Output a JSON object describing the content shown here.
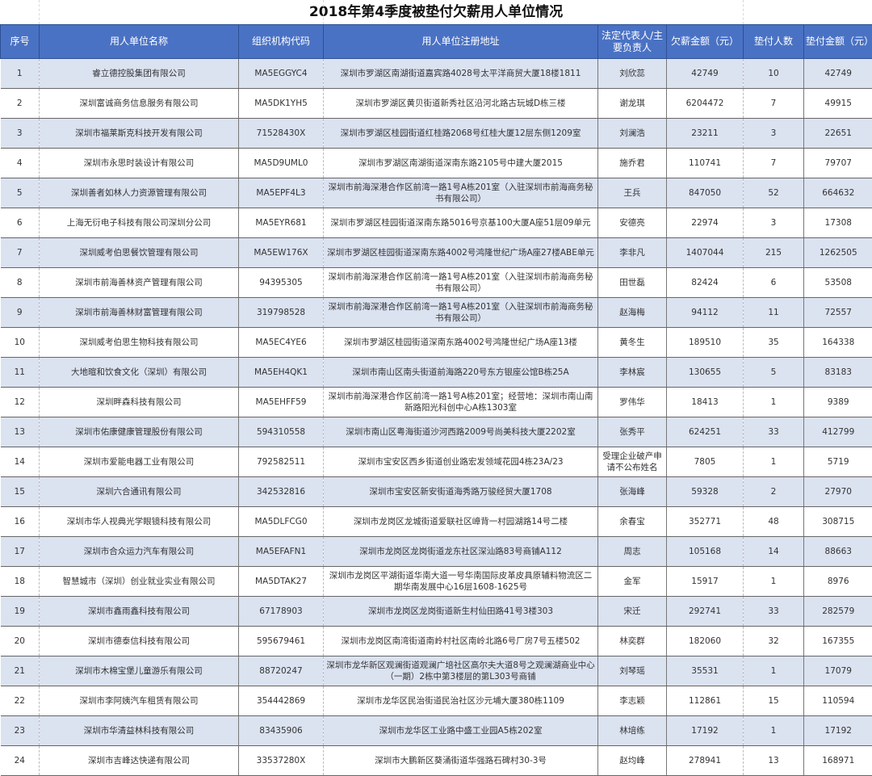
{
  "title": "2018年第4季度被垫付欠薪用人单位情况",
  "colors": {
    "header_bg": "#4a72c4",
    "row_shade": "#dbe2f0"
  },
  "headers": [
    "序号",
    "用人单位名称",
    "组织机构代码",
    "用人单位注册地址",
    "法定代表人/主要负责人",
    "欠薪金额（元）",
    "垫付人数",
    "垫付金额（元）"
  ],
  "rows": [
    [
      "1",
      "睿立德控股集团有限公司",
      "MA5EGGYC4",
      "深圳市罗湖区南湖街道嘉宾路4028号太平洋商贸大厦18楼1811",
      "刘欣蕊",
      "42749",
      "10",
      "42749"
    ],
    [
      "2",
      "深圳富诚商务信息服务有限公司",
      "MA5DK1YH5",
      "深圳市罗湖区黄贝街道新秀社区沿河北路古玩城D栋三楼",
      "谢龙琪",
      "6204472",
      "7",
      "49915"
    ],
    [
      "3",
      "深圳市福莱斯克科技开发有限公司",
      "71528430X",
      "深圳市罗湖区桂园街道红桂路2068号红桂大厦12层东侧1209室",
      "刘澜浩",
      "23211",
      "3",
      "22651"
    ],
    [
      "4",
      "深圳市永思时装设计有限公司",
      "MA5D9UML0",
      "深圳市罗湖区南湖街道深南东路2105号中建大厦2015",
      "施乔君",
      "110741",
      "7",
      "79707"
    ],
    [
      "5",
      "深圳善者如林人力资源管理有限公司",
      "MA5EPF4L3",
      "深圳市前海深港合作区前湾一路1号A栋201室（入驻深圳市前海商务秘书有限公司）",
      "王兵",
      "847050",
      "52",
      "664632"
    ],
    [
      "6",
      "上海无衍电子科技有限公司深圳分公司",
      "MA5EYR681",
      "深圳市罗湖区桂园街道深南东路5016号京基100大厦A座51层09单元",
      "安德亮",
      "22974",
      "3",
      "17308"
    ],
    [
      "7",
      "深圳威考伯思餐饮管理有限公司",
      "MA5EW176X",
      "深圳市罗湖区桂园街道深南东路4002号鸿隆世纪广场A座27楼ABE单元",
      "李非凡",
      "1407044",
      "215",
      "1262505"
    ],
    [
      "8",
      "深圳市前海善林资产管理有限公司",
      "94395305",
      "深圳市前海深港合作区前湾一路1号A栋201室（入驻深圳市前海商务秘书有限公司）",
      "田世磊",
      "82424",
      "6",
      "53508"
    ],
    [
      "9",
      "深圳市前海善林财富管理有限公司",
      "319798528",
      "深圳市前海深港合作区前湾一路1号A栋201室（入驻深圳市前海商务秘书有限公司）",
      "赵海梅",
      "94112",
      "11",
      "72557"
    ],
    [
      "10",
      "深圳威考伯思生物科技有限公司",
      "MA5EC4YE6",
      "深圳市罗湖区桂园街道深南东路4002号鸿隆世纪广场A座13楼",
      "黄冬生",
      "189510",
      "35",
      "164338"
    ],
    [
      "11",
      "大地暄和饮食文化（深圳）有限公司",
      "MA5EH4QK1",
      "深圳市南山区南头街道前海路220号东方银座公馆B栋25A",
      "李林宸",
      "130655",
      "5",
      "83183"
    ],
    [
      "12",
      "深圳畔森科技有限公司",
      "MA5EHFF59",
      "深圳市前海深港合作区前湾一路1号A栋201室；经营地：深圳市南山南新路阳光科创中心A栋1303室",
      "罗伟华",
      "18413",
      "1",
      "9389"
    ],
    [
      "13",
      "深圳市佑康健康管理股份有限公司",
      "594310558",
      "深圳市南山区粤海街道沙河西路2009号尚美科技大厦2202室",
      "张秀平",
      "624251",
      "33",
      "412799"
    ],
    [
      "14",
      "深圳市爱能电器工业有限公司",
      "792582511",
      "深圳市宝安区西乡街道创业路宏发领域花园4栋23A/23",
      "受理企业破产申请不公布姓名",
      "7805",
      "1",
      "5719"
    ],
    [
      "15",
      "深圳六合通讯有限公司",
      "342532816",
      "深圳市宝安区新安街道海秀路万骏经贸大厦1708",
      "张海峰",
      "59328",
      "2",
      "27970"
    ],
    [
      "16",
      "深圳市华人视典光学眼镜科技有限公司",
      "MA5DLFCG0",
      "深圳市龙岗区龙城街道爱联社区嶂背一村园湖路14号二楼",
      "余春宝",
      "352771",
      "48",
      "308715"
    ],
    [
      "17",
      "深圳市合众运力汽车有限公司",
      "MA5EFAFN1",
      "深圳市龙岗区龙岗街道龙东社区深汕路83号商铺A112",
      "周志",
      "105168",
      "14",
      "88663"
    ],
    [
      "18",
      "智慧城市（深圳）创业就业实业有限公司",
      "MA5DTAK27",
      "深圳市龙岗区平湖街道华南大道一号华南国际皮革皮具原辅料物流区二期华南发展中心16层1608-1625号",
      "金军",
      "15917",
      "1",
      "8976"
    ],
    [
      "19",
      "深圳市鑫雨鑫科技有限公司",
      "67178903",
      "深圳市龙岗区龙岗街道新生村仙田路41号3楼303",
      "宋迁",
      "292741",
      "33",
      "282579"
    ],
    [
      "20",
      "深圳市德泰信科技有限公司",
      "595679461",
      "深圳市龙岗区南湾街道南岭村社区南岭北路6号厂房7号五楼502",
      "林奕群",
      "182060",
      "32",
      "167355"
    ],
    [
      "21",
      "深圳市木棉宝堡儿童游乐有限公司",
      "88720247",
      "深圳市龙华新区观澜街道观澜广培社区高尔夫大道8号之观澜湖商业中心（一期）2栋中第3楼层的第L303号商铺",
      "刘琴瑶",
      "35531",
      "1",
      "17079"
    ],
    [
      "22",
      "深圳市李阿姨汽车租赁有限公司",
      "354442869",
      "深圳市龙华区民治街道民治社区沙元埔大厦380栋1109",
      "李志颖",
      "112861",
      "15",
      "110594"
    ],
    [
      "23",
      "深圳市华清益林科技有限公司",
      "83435906",
      "深圳市龙华区工业路中盛工业园A5栋202室",
      "林培练",
      "17192",
      "1",
      "17192"
    ],
    [
      "24",
      "深圳市吉峰达快递有限公司",
      "33537280X",
      "深圳市大鹏新区葵涌街道华强路石碑村30-3号",
      "赵均峰",
      "278941",
      "13",
      "168971"
    ]
  ]
}
